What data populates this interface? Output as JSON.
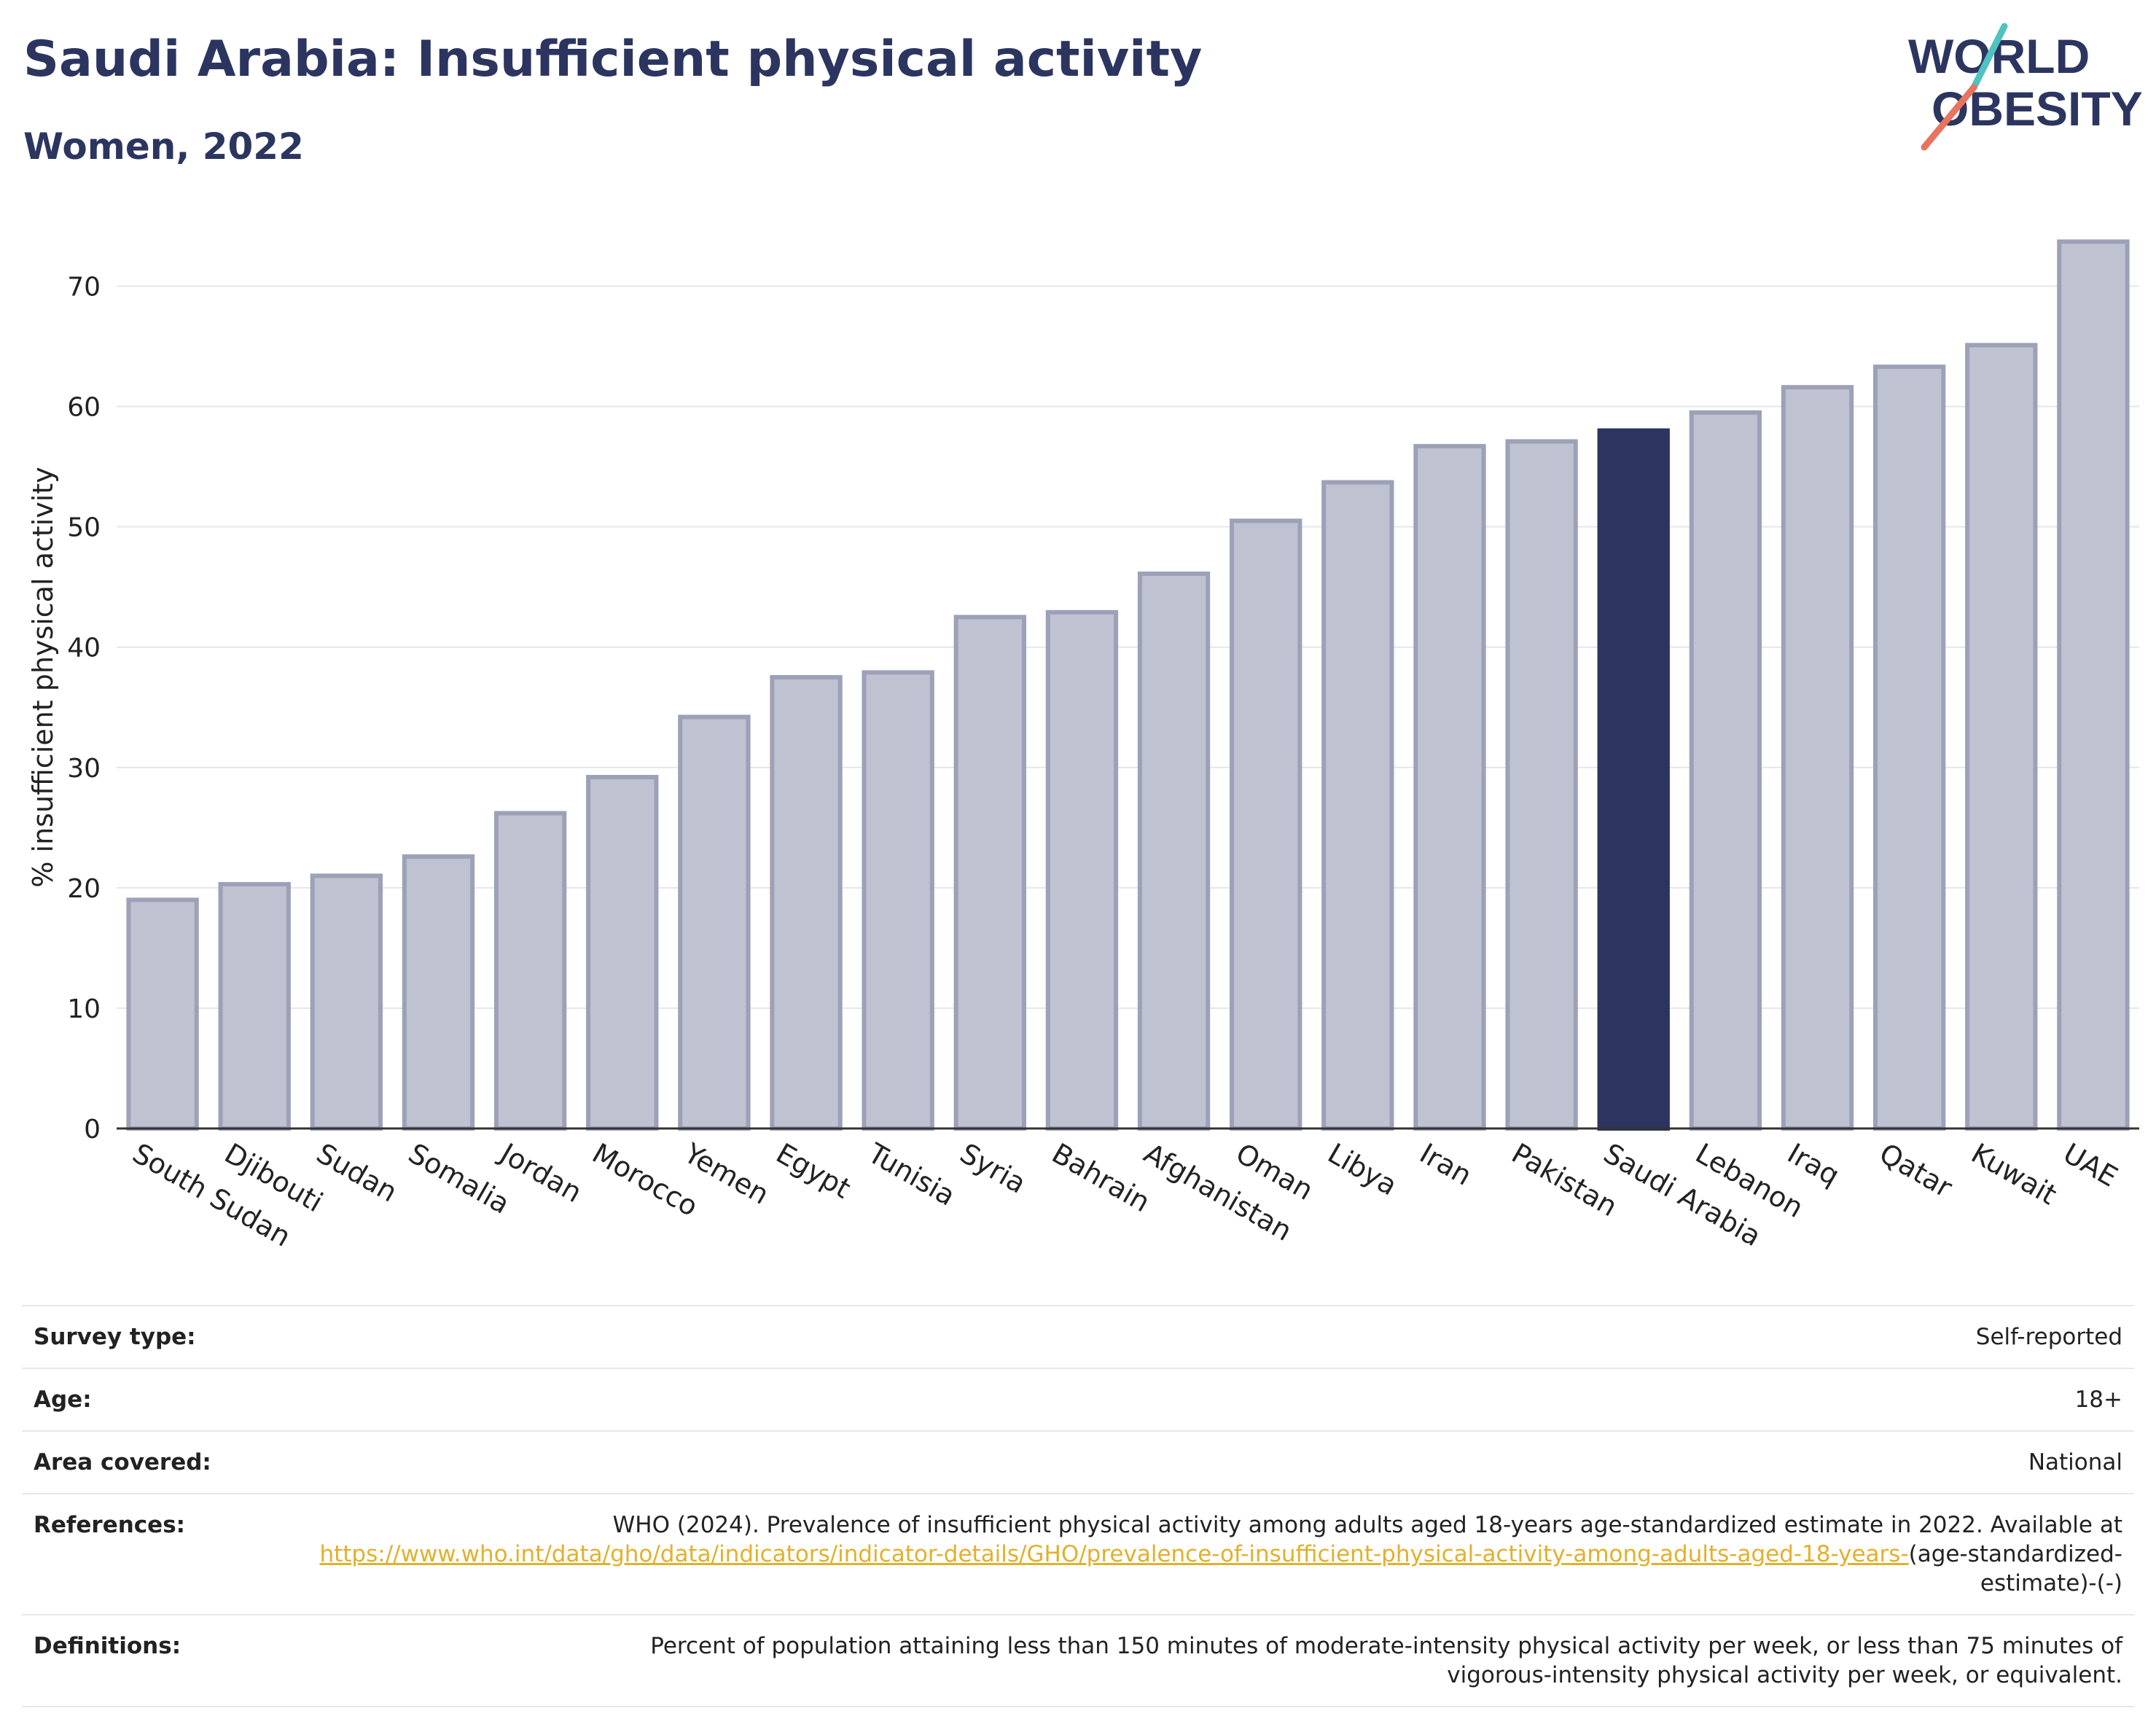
{
  "header": {
    "title": "Saudi Arabia: Insufficient physical activity",
    "subtitle": "Women, 2022"
  },
  "logo": {
    "line1": "WORLD",
    "line2": "OBESITY",
    "text_color": "#2b3560",
    "accent_teal": "#4fc3c0",
    "accent_coral": "#e8735f"
  },
  "chart_data": {
    "type": "bar",
    "ylabel": "% insufficient physical activity",
    "xlabel": "",
    "ylim": [
      0,
      75
    ],
    "yticks": [
      0,
      10,
      20,
      30,
      40,
      50,
      60,
      70
    ],
    "grid": true,
    "categories": [
      "South Sudan",
      "Djibouti",
      "Sudan",
      "Somalia",
      "Jordan",
      "Morocco",
      "Yemen",
      "Egypt",
      "Tunisia",
      "Syria",
      "Bahrain",
      "Afghanistan",
      "Oman",
      "Libya",
      "Iran",
      "Pakistan",
      "Saudi Arabia",
      "Lebanon",
      "Iraq",
      "Qatar",
      "Kuwait",
      "UAE"
    ],
    "values": [
      19.0,
      20.3,
      21.0,
      22.6,
      26.2,
      29.2,
      34.2,
      37.5,
      37.9,
      42.5,
      42.9,
      46.1,
      50.5,
      53.7,
      56.7,
      57.1,
      58.0,
      59.5,
      61.6,
      63.3,
      65.1,
      73.7
    ],
    "highlight": "Saudi Arabia",
    "bar_color": "#bfc2d0",
    "bar_border_color": "#9da1b8",
    "highlight_color": "#2b3560"
  },
  "info": {
    "survey_type": {
      "label": "Survey type:",
      "value": "Self-reported"
    },
    "age": {
      "label": "Age:",
      "value": "18+"
    },
    "area": {
      "label": "Area covered:",
      "value": "National"
    },
    "references": {
      "label": "References:",
      "text": "WHO (2024). Prevalence of insufficient physical activity among adults aged 18-years age-standardized estimate in 2022. Available at",
      "link": "https://www.who.int/data/gho/data/indicators/indicator-details/GHO/prevalence-of-insufficient-physical-activity-among-adults-aged-18-years-",
      "suffix": "(age-standardized-estimate)-(-)"
    },
    "definitions": {
      "label": "Definitions:",
      "value": "Percent of population attaining less than 150 minutes of moderate-intensity physical activity per week, or less than 75 minutes of vigorous-intensity physical activity per week, or equivalent."
    }
  }
}
